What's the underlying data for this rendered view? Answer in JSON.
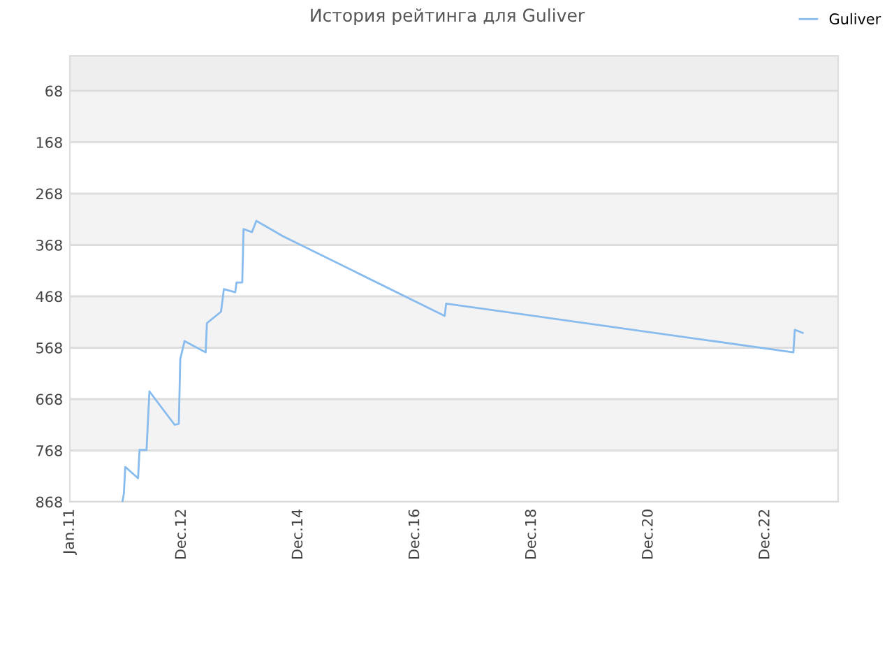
{
  "chart_data": {
    "type": "line",
    "title": "История рейтинга для Guliver",
    "x": [
      "2011-11-26",
      "2011-12-05",
      "2011-12-14",
      "2012-03-03",
      "2012-03-12",
      "2012-04-25",
      "2012-05-13",
      "2012-10-18",
      "2012-11-13",
      "2012-11-22",
      "2012-12-19",
      "2013-04-30",
      "2013-05-08",
      "2013-08-04",
      "2013-08-22",
      "2013-11-01",
      "2013-11-09",
      "2013-12-15",
      "2013-12-23",
      "2014-02-14",
      "2014-03-13",
      "2014-08-27",
      "2017-06-04",
      "2017-06-13",
      "2023-05-26",
      "2023-06-04",
      "2023-07-23"
    ],
    "series": [
      {
        "name": "Guliver",
        "color": "#88bbee",
        "values": [
          868,
          852,
          800,
          822,
          767,
          767,
          653,
          718,
          716,
          590,
          555,
          577,
          520,
          498,
          454,
          460,
          441,
          441,
          337,
          343,
          321,
          351,
          506,
          482,
          577,
          533,
          539
        ]
      }
    ],
    "xlim": [
      "2011-01-01",
      "2024-03-01"
    ],
    "xticks": [
      {
        "value": "2011-01-01",
        "label": "Jan.11"
      },
      {
        "value": "2012-12-01",
        "label": "Dec.12"
      },
      {
        "value": "2014-12-01",
        "label": "Dec.14"
      },
      {
        "value": "2016-12-01",
        "label": "Dec.16"
      },
      {
        "value": "2018-12-01",
        "label": "Dec.18"
      },
      {
        "value": "2020-12-01",
        "label": "Dec.20"
      },
      {
        "value": "2022-12-01",
        "label": "Dec.22"
      }
    ],
    "ylim": [
      868,
      0
    ],
    "yticks": [
      68,
      168,
      268,
      368,
      468,
      568,
      668,
      768,
      868
    ],
    "bands": [
      {
        "axis": "y",
        "from": 0,
        "to": 68,
        "color": "#eeeeee"
      }
    ],
    "grid": "y",
    "legend": "top right",
    "marker": "none",
    "line_style": "solid"
  }
}
